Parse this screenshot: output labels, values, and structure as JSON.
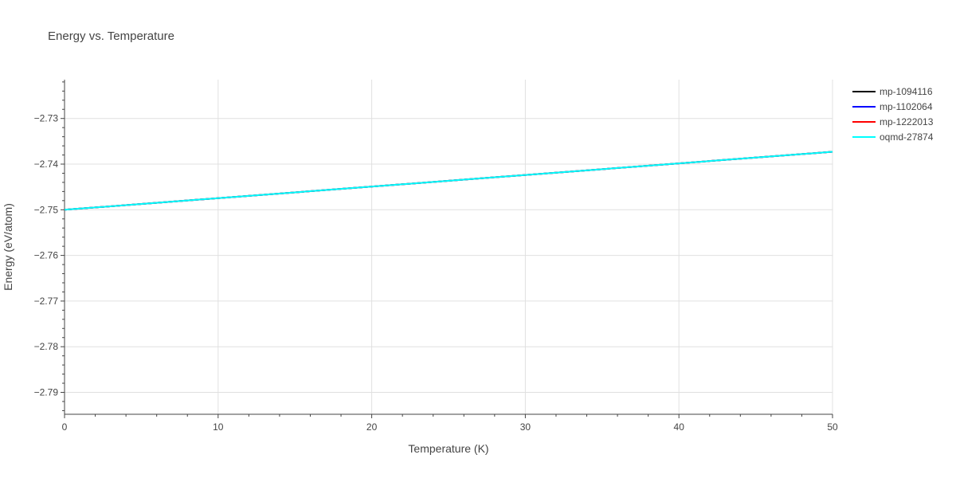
{
  "chart_data": {
    "type": "line",
    "title": "Energy vs. Temperature",
    "xlabel": "Temperature (K)",
    "ylabel": "Energy (eV/atom)",
    "xlim": [
      0,
      50
    ],
    "ylim": [
      -2.7948,
      -2.7215
    ],
    "xticks": [
      0,
      10,
      20,
      30,
      40,
      50
    ],
    "yticks": [
      -2.73,
      -2.74,
      -2.75,
      -2.76,
      -2.77,
      -2.78,
      -2.79
    ],
    "ytick_labels": [
      "−2.73",
      "−2.74",
      "−2.75",
      "−2.76",
      "−2.77",
      "−2.78",
      "−2.79"
    ],
    "grid": true,
    "legend_position": "top-right",
    "series": [
      {
        "name": "mp-1094116",
        "color": "#000000",
        "x": [
          0,
          50
        ],
        "y": [
          -2.75,
          -2.7373
        ]
      },
      {
        "name": "mp-1102064",
        "color": "#0000ff",
        "x": [
          0,
          50
        ],
        "y": [
          -2.75,
          -2.7373
        ]
      },
      {
        "name": "mp-1222013",
        "color": "#ff0000",
        "x": [
          0,
          50
        ],
        "y": [
          -2.75,
          -2.7373
        ]
      },
      {
        "name": "oqmd-27874",
        "color": "#00ffff",
        "x": [
          0,
          50
        ],
        "y": [
          -2.75,
          -2.7373
        ]
      }
    ]
  }
}
